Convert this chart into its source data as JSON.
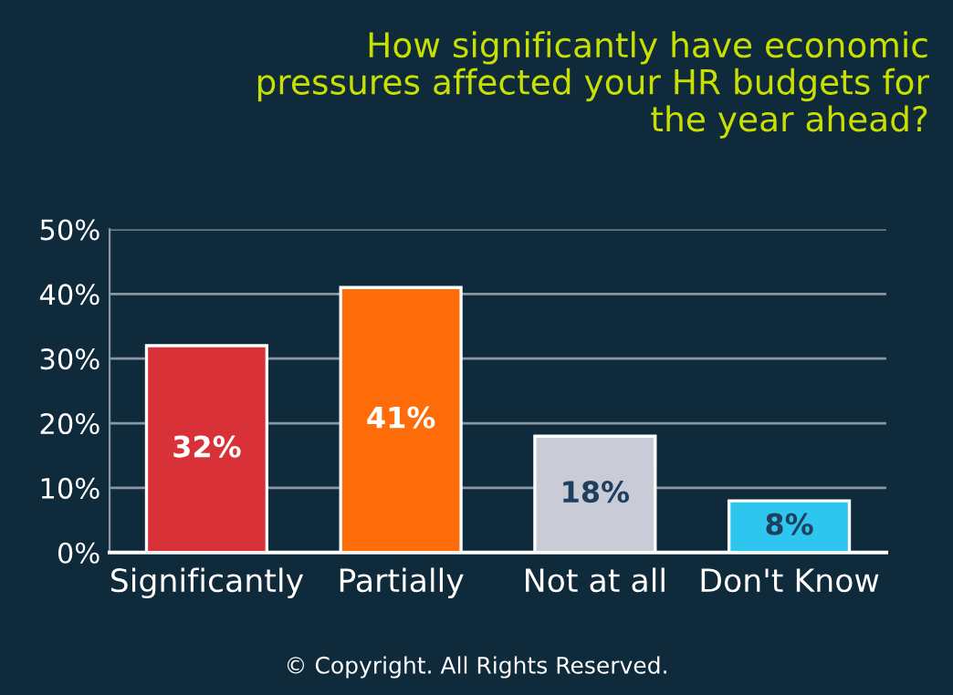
{
  "chart_data": {
    "type": "bar",
    "title": "How significantly have economic\npressures affected your HR budgets for\nthe year ahead?",
    "categories": [
      "Significantly",
      "Partially",
      "Not at all",
      "Don't Know"
    ],
    "values": [
      32,
      41,
      18,
      8
    ],
    "colors": [
      "#d83238",
      "#ff6c0a",
      "#c9ccd6",
      "#2ec6ee"
    ],
    "value_labels": [
      "32%",
      "41%",
      "18%",
      "8%"
    ],
    "ylim": [
      0,
      50
    ],
    "yticks": [
      {
        "value": 0,
        "label": "0%"
      },
      {
        "value": 10,
        "label": "10%"
      },
      {
        "value": 20,
        "label": "20%"
      },
      {
        "value": 30,
        "label": "30%"
      },
      {
        "value": 40,
        "label": "40%"
      },
      {
        "value": 50,
        "label": "50%"
      }
    ],
    "grid": "y",
    "annotations": [
      "© Copyright. All Rights Reserved."
    ]
  }
}
